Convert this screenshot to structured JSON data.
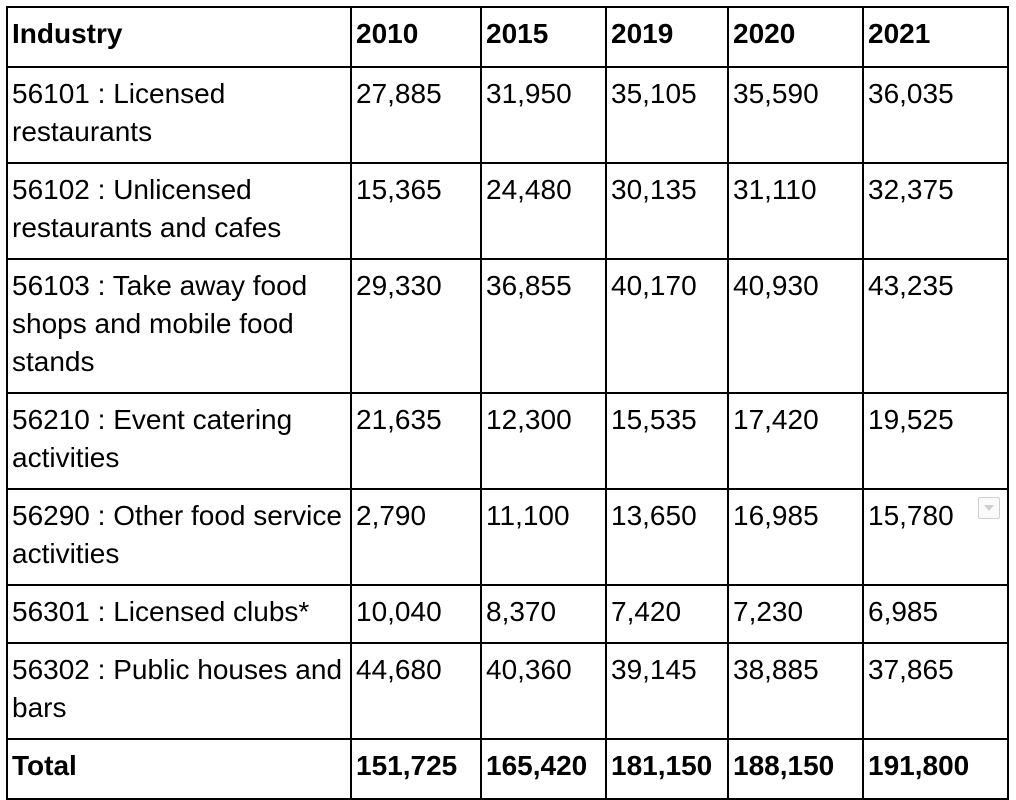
{
  "table": {
    "headers": [
      "Industry",
      "2010",
      "2015",
      "2019",
      "2020",
      "2021"
    ],
    "rows": [
      [
        "56101 : Licensed restaurants",
        "27,885",
        "31,950",
        "35,105",
        "35,590",
        "36,035"
      ],
      [
        "56102 : Unlicensed restaurants and cafes",
        "15,365",
        "24,480",
        "30,135",
        "31,110",
        "32,375"
      ],
      [
        "56103 : Take away food shops and mobile food stands",
        "29,330",
        "36,855",
        "40,170",
        "40,930",
        "43,235"
      ],
      [
        "56210 : Event catering activities",
        "21,635",
        "12,300",
        "15,535",
        "17,420",
        "19,525"
      ],
      [
        "56290 : Other food service activities",
        "2,790",
        "11,100",
        "13,650",
        "16,985",
        "15,780"
      ],
      [
        "56301 : Licensed clubs*",
        "10,040",
        "8,370",
        "7,420",
        "7,230",
        "6,985"
      ],
      [
        "56302 : Public houses and bars",
        "44,680",
        "40,360",
        "39,145",
        "38,885",
        "37,865"
      ]
    ],
    "total": [
      "Total",
      "151,725",
      "165,420",
      "181,150",
      "188,150",
      "191,800"
    ]
  },
  "icons": {
    "row5_dropdown": "chevron-down-icon"
  }
}
